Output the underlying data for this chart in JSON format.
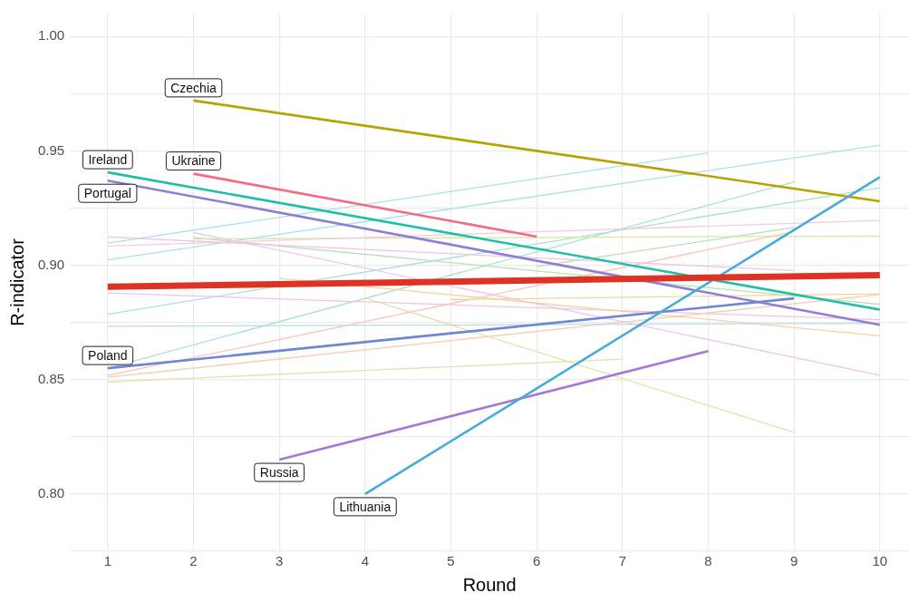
{
  "chart_data": {
    "type": "line",
    "xlabel": "Round",
    "ylabel": "R-indicator",
    "xlim": [
      0.56,
      10.34
    ],
    "xticks": [
      1,
      2,
      3,
      4,
      5,
      6,
      7,
      8,
      9,
      10
    ],
    "ylim": [
      0.775,
      1.01
    ],
    "yticks": [
      {
        "value": 0.775,
        "label": null
      },
      {
        "value": 0.8,
        "label": "0.80"
      },
      {
        "value": 0.825,
        "label": null
      },
      {
        "value": 0.85,
        "label": "0.85"
      },
      {
        "value": 0.875,
        "label": null
      },
      {
        "value": 0.9,
        "label": "0.90"
      },
      {
        "value": 0.925,
        "label": null
      },
      {
        "value": 0.95,
        "label": "0.95"
      },
      {
        "value": 0.975,
        "label": null
      },
      {
        "value": 1.0,
        "label": "1.00"
      }
    ],
    "grid": true,
    "legend": false,
    "marker": "none",
    "line_style": "solid",
    "series": [
      {
        "color": "#a8e0ec",
        "x": [
          1,
          8
        ],
        "values": [
          0.9097,
          0.9491
        ]
      },
      {
        "color": "#a8e0ec",
        "x": [
          1,
          10
        ],
        "values": [
          0.9024,
          0.9525
        ]
      },
      {
        "color": "#a8e3cf",
        "x": [
          1,
          10
        ],
        "values": [
          0.8786,
          0.9339
        ]
      },
      {
        "color": "#a8e3cf",
        "x": [
          1,
          9
        ],
        "values": [
          0.855,
          0.9364
        ]
      },
      {
        "color": "#b5e2b0",
        "x": [
          2,
          10
        ],
        "values": [
          0.9121,
          0.8829
        ]
      },
      {
        "color": "#b5e2b0",
        "x": [
          6,
          9
        ],
        "values": [
          0.8995,
          0.9165
        ]
      },
      {
        "color": "#d6e4a6",
        "x": [
          2,
          10
        ],
        "values": [
          0.9115,
          0.9128
        ]
      },
      {
        "color": "#f9c8e0",
        "x": [
          1,
          10
        ],
        "values": [
          0.9084,
          0.9196
        ]
      },
      {
        "color": "#f2c2e6",
        "x": [
          1,
          9
        ],
        "values": [
          0.9124,
          0.8977
        ]
      },
      {
        "color": "#ecc6f0",
        "x": [
          2,
          10
        ],
        "values": [
          0.9143,
          0.8519
        ]
      },
      {
        "color": "#f2c2e6",
        "x": [
          1,
          10
        ],
        "values": [
          0.8879,
          0.8762
        ]
      },
      {
        "color": "#fbc4bc",
        "x": [
          1,
          9
        ],
        "values": [
          0.8518,
          0.9147
        ]
      },
      {
        "color": "#f8cdb0",
        "x": [
          1,
          10
        ],
        "values": [
          0.851,
          0.8872
        ]
      },
      {
        "color": "#f4d2a0",
        "x": [
          3,
          10
        ],
        "values": [
          0.8942,
          0.8692
        ]
      },
      {
        "color": "#f4d2a0",
        "x": [
          5,
          10
        ],
        "values": [
          0.885,
          0.8875
        ]
      },
      {
        "color": "#ebdca4",
        "x": [
          4,
          9
        ],
        "values": [
          0.8857,
          0.827
        ]
      },
      {
        "color": "#dde6b0",
        "x": [
          1,
          7
        ],
        "values": [
          0.849,
          0.859
        ]
      },
      {
        "color": "#b4dcf2",
        "x": [
          1,
          10
        ],
        "values": [
          0.8733,
          0.8746
        ]
      },
      {
        "name": "Czechia",
        "color": "#b8a200",
        "x": [
          2,
          10
        ],
        "values": [
          0.972,
          0.928
        ]
      },
      {
        "name": "Ireland",
        "color": "#1fbfa5",
        "x": [
          1,
          10
        ],
        "values": [
          0.9406,
          0.8806
        ]
      },
      {
        "name": "Portugal",
        "color": "#8e7ed6",
        "x": [
          1,
          10
        ],
        "values": [
          0.937,
          0.874
        ]
      },
      {
        "name": "Ukraine",
        "color": "#f6697f",
        "x": [
          2,
          6
        ],
        "values": [
          0.94,
          0.9125
        ]
      },
      {
        "name": "Poland",
        "color": "#6f86d0",
        "x": [
          1,
          9
        ],
        "values": [
          0.855,
          0.8855
        ]
      },
      {
        "name": "Russia",
        "color": "#a777d6",
        "x": [
          3,
          8
        ],
        "values": [
          0.815,
          0.8625
        ]
      },
      {
        "name": "Lithuania",
        "color": "#45acd9",
        "x": [
          4,
          10
        ],
        "values": [
          0.8,
          0.9385
        ]
      },
      {
        "color": "#dd3224",
        "x": [
          1,
          10
        ],
        "values": [
          0.8906,
          0.8957
        ]
      }
    ]
  }
}
